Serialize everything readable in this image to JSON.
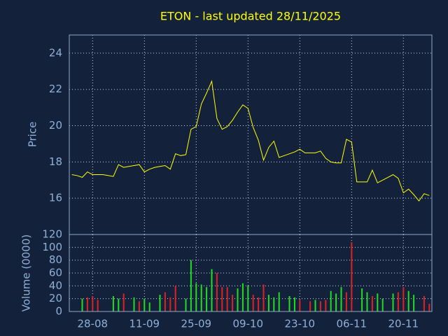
{
  "chart_data": [
    {
      "type": "line",
      "title": "ETON - last updated 28/11/2025",
      "ylabel": "Price",
      "color": "#ffff00",
      "values": [
        17.3,
        17.25,
        17.15,
        17.45,
        17.3,
        17.3,
        17.3,
        17.25,
        17.2,
        17.85,
        17.7,
        17.75,
        17.8,
        17.85,
        17.45,
        17.6,
        17.7,
        17.75,
        17.8,
        17.6,
        18.45,
        18.35,
        18.4,
        19.8,
        19.95,
        21.2,
        21.8,
        22.45,
        20.4,
        19.8,
        19.95,
        20.3,
        20.75,
        21.15,
        20.95,
        19.9,
        19.2,
        18.1,
        18.8,
        19.15,
        18.25,
        18.35,
        18.45,
        18.55,
        18.7,
        18.5,
        18.5,
        18.5,
        18.6,
        18.2,
        18.0,
        17.95,
        17.95,
        19.25,
        19.1,
        16.9,
        16.9,
        16.9,
        17.55,
        16.85,
        17.0,
        17.15,
        17.3,
        17.1,
        16.3,
        16.5,
        16.2,
        15.85,
        16.25,
        16.15
      ],
      "ylim": [
        14,
        25
      ],
      "yticks": [
        16,
        18,
        20,
        22,
        24
      ],
      "grid": true
    },
    {
      "type": "bar",
      "ylabel": "Volume (0000)",
      "categories": [
        null,
        null,
        null,
        null,
        "28-08",
        null,
        null,
        null,
        null,
        null,
        null,
        null,
        null,
        null,
        "11-09",
        null,
        null,
        null,
        null,
        null,
        null,
        null,
        null,
        null,
        "25-09",
        null,
        null,
        null,
        null,
        null,
        null,
        null,
        null,
        null,
        "09-10",
        null,
        null,
        null,
        null,
        null,
        null,
        null,
        null,
        null,
        "23-10",
        null,
        null,
        null,
        null,
        null,
        null,
        null,
        null,
        null,
        "06-11",
        null,
        null,
        null,
        null,
        null,
        null,
        null,
        null,
        null,
        "20-11",
        null,
        null,
        null,
        null,
        null
      ],
      "values": [
        0,
        0,
        20,
        22,
        24,
        18,
        0,
        0,
        24,
        20,
        28,
        0,
        22,
        16,
        20,
        14,
        0,
        26,
        30,
        22,
        40,
        0,
        20,
        80,
        44,
        42,
        38,
        66,
        60,
        38,
        38,
        26,
        36,
        44,
        40,
        26,
        22,
        42,
        26,
        22,
        30,
        0,
        24,
        22,
        18,
        0,
        16,
        18,
        16,
        18,
        32,
        28,
        38,
        30,
        108,
        0,
        36,
        30,
        24,
        28,
        20,
        0,
        28,
        30,
        38,
        32,
        26,
        0,
        24,
        12
      ],
      "colors": [
        "#22dd22",
        "#22dd22",
        "#22dd22",
        "#dd2222",
        "#dd2222",
        "#dd2222",
        "#22dd22",
        "#22dd22",
        "#22dd22",
        "#22dd22",
        "#dd2222",
        "#22dd22",
        "#22dd22",
        "#dd2222",
        "#22dd22",
        "#22dd22",
        "#22dd22",
        "#22dd22",
        "#dd2222",
        "#dd2222",
        "#dd2222",
        "#22dd22",
        "#22dd22",
        "#22dd22",
        "#22dd22",
        "#22dd22",
        "#22dd22",
        "#22dd22",
        "#dd2222",
        "#dd2222",
        "#dd2222",
        "#dd2222",
        "#22dd22",
        "#22dd22",
        "#22dd22",
        "#dd2222",
        "#dd2222",
        "#dd2222",
        "#22dd22",
        "#22dd22",
        "#22dd22",
        "#22dd22",
        "#22dd22",
        "#22dd22",
        "#dd2222",
        "#22dd22",
        "#dd2222",
        "#22dd22",
        "#dd2222",
        "#dd2222",
        "#22dd22",
        "#22dd22",
        "#22dd22",
        "#dd2222",
        "#dd2222",
        "#22dd22",
        "#22dd22",
        "#22dd22",
        "#dd2222",
        "#22dd22",
        "#22dd22",
        "#22dd22",
        "#22dd22",
        "#dd2222",
        "#dd2222",
        "#22dd22",
        "#22dd22",
        "#22dd22",
        "#dd2222",
        "#dd2222"
      ],
      "ylim": [
        0,
        120
      ],
      "yticks": [
        0,
        20,
        40,
        60,
        80,
        100,
        120
      ],
      "grid": true
    }
  ]
}
